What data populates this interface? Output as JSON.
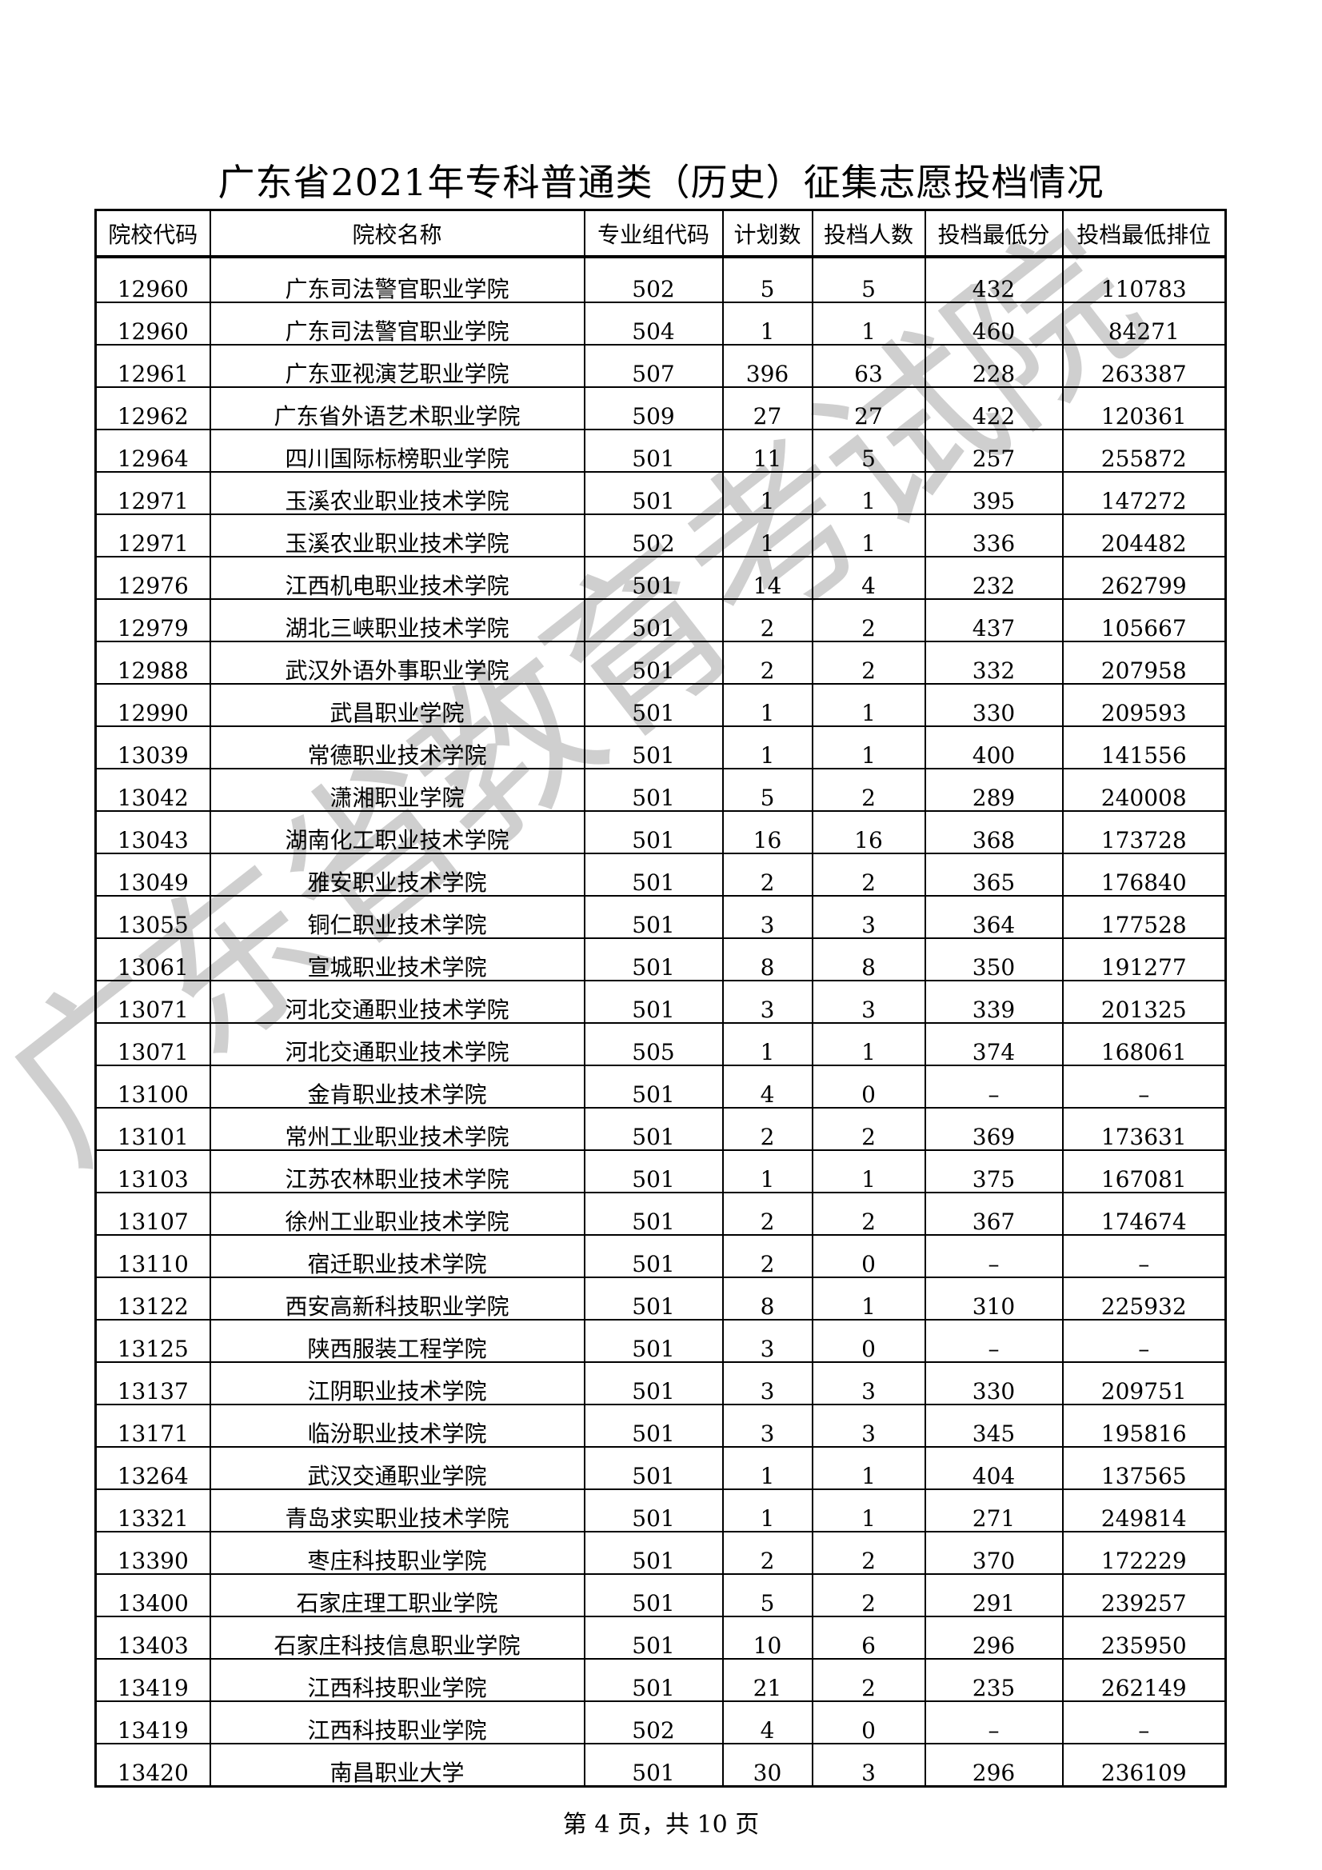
{
  "title": "广东省2021年专科普通类（历史）征集志愿投档情况",
  "watermark": "广东省教育考试院",
  "columns": [
    "院校代码",
    "院校名称",
    "专业组代码",
    "计划数",
    "投档人数",
    "投档最低分",
    "投档最低排位"
  ],
  "rows": [
    [
      "12960",
      "广东司法警官职业学院",
      "502",
      "5",
      "5",
      "432",
      "110783"
    ],
    [
      "12960",
      "广东司法警官职业学院",
      "504",
      "1",
      "1",
      "460",
      "84271"
    ],
    [
      "12961",
      "广东亚视演艺职业学院",
      "507",
      "396",
      "63",
      "228",
      "263387"
    ],
    [
      "12962",
      "广东省外语艺术职业学院",
      "509",
      "27",
      "27",
      "422",
      "120361"
    ],
    [
      "12964",
      "四川国际标榜职业学院",
      "501",
      "11",
      "5",
      "257",
      "255872"
    ],
    [
      "12971",
      "玉溪农业职业技术学院",
      "501",
      "1",
      "1",
      "395",
      "147272"
    ],
    [
      "12971",
      "玉溪农业职业技术学院",
      "502",
      "1",
      "1",
      "336",
      "204482"
    ],
    [
      "12976",
      "江西机电职业技术学院",
      "501",
      "14",
      "4",
      "232",
      "262799"
    ],
    [
      "12979",
      "湖北三峡职业技术学院",
      "501",
      "2",
      "2",
      "437",
      "105667"
    ],
    [
      "12988",
      "武汉外语外事职业学院",
      "501",
      "2",
      "2",
      "332",
      "207958"
    ],
    [
      "12990",
      "武昌职业学院",
      "501",
      "1",
      "1",
      "330",
      "209593"
    ],
    [
      "13039",
      "常德职业技术学院",
      "501",
      "1",
      "1",
      "400",
      "141556"
    ],
    [
      "13042",
      "潇湘职业学院",
      "501",
      "5",
      "2",
      "289",
      "240008"
    ],
    [
      "13043",
      "湖南化工职业技术学院",
      "501",
      "16",
      "16",
      "368",
      "173728"
    ],
    [
      "13049",
      "雅安职业技术学院",
      "501",
      "2",
      "2",
      "365",
      "176840"
    ],
    [
      "13055",
      "铜仁职业技术学院",
      "501",
      "3",
      "3",
      "364",
      "177528"
    ],
    [
      "13061",
      "宣城职业技术学院",
      "501",
      "8",
      "8",
      "350",
      "191277"
    ],
    [
      "13071",
      "河北交通职业技术学院",
      "501",
      "3",
      "3",
      "339",
      "201325"
    ],
    [
      "13071",
      "河北交通职业技术学院",
      "505",
      "1",
      "1",
      "374",
      "168061"
    ],
    [
      "13100",
      "金肯职业技术学院",
      "501",
      "4",
      "0",
      "–",
      "–"
    ],
    [
      "13101",
      "常州工业职业技术学院",
      "501",
      "2",
      "2",
      "369",
      "173631"
    ],
    [
      "13103",
      "江苏农林职业技术学院",
      "501",
      "1",
      "1",
      "375",
      "167081"
    ],
    [
      "13107",
      "徐州工业职业技术学院",
      "501",
      "2",
      "2",
      "367",
      "174674"
    ],
    [
      "13110",
      "宿迁职业技术学院",
      "501",
      "2",
      "0",
      "–",
      "–"
    ],
    [
      "13122",
      "西安高新科技职业学院",
      "501",
      "8",
      "1",
      "310",
      "225932"
    ],
    [
      "13125",
      "陕西服装工程学院",
      "501",
      "3",
      "0",
      "–",
      "–"
    ],
    [
      "13137",
      "江阴职业技术学院",
      "501",
      "3",
      "3",
      "330",
      "209751"
    ],
    [
      "13171",
      "临汾职业技术学院",
      "501",
      "3",
      "3",
      "345",
      "195816"
    ],
    [
      "13264",
      "武汉交通职业学院",
      "501",
      "1",
      "1",
      "404",
      "137565"
    ],
    [
      "13321",
      "青岛求实职业技术学院",
      "501",
      "1",
      "1",
      "271",
      "249814"
    ],
    [
      "13390",
      "枣庄科技职业学院",
      "501",
      "2",
      "2",
      "370",
      "172229"
    ],
    [
      "13400",
      "石家庄理工职业学院",
      "501",
      "5",
      "2",
      "291",
      "239257"
    ],
    [
      "13403",
      "石家庄科技信息职业学院",
      "501",
      "10",
      "6",
      "296",
      "235950"
    ],
    [
      "13419",
      "江西科技职业学院",
      "501",
      "21",
      "2",
      "235",
      "262149"
    ],
    [
      "13419",
      "江西科技职业学院",
      "502",
      "4",
      "0",
      "–",
      "–"
    ],
    [
      "13420",
      "南昌职业大学",
      "501",
      "30",
      "3",
      "296",
      "236109"
    ]
  ],
  "footer": "第 4 页，共 10 页"
}
